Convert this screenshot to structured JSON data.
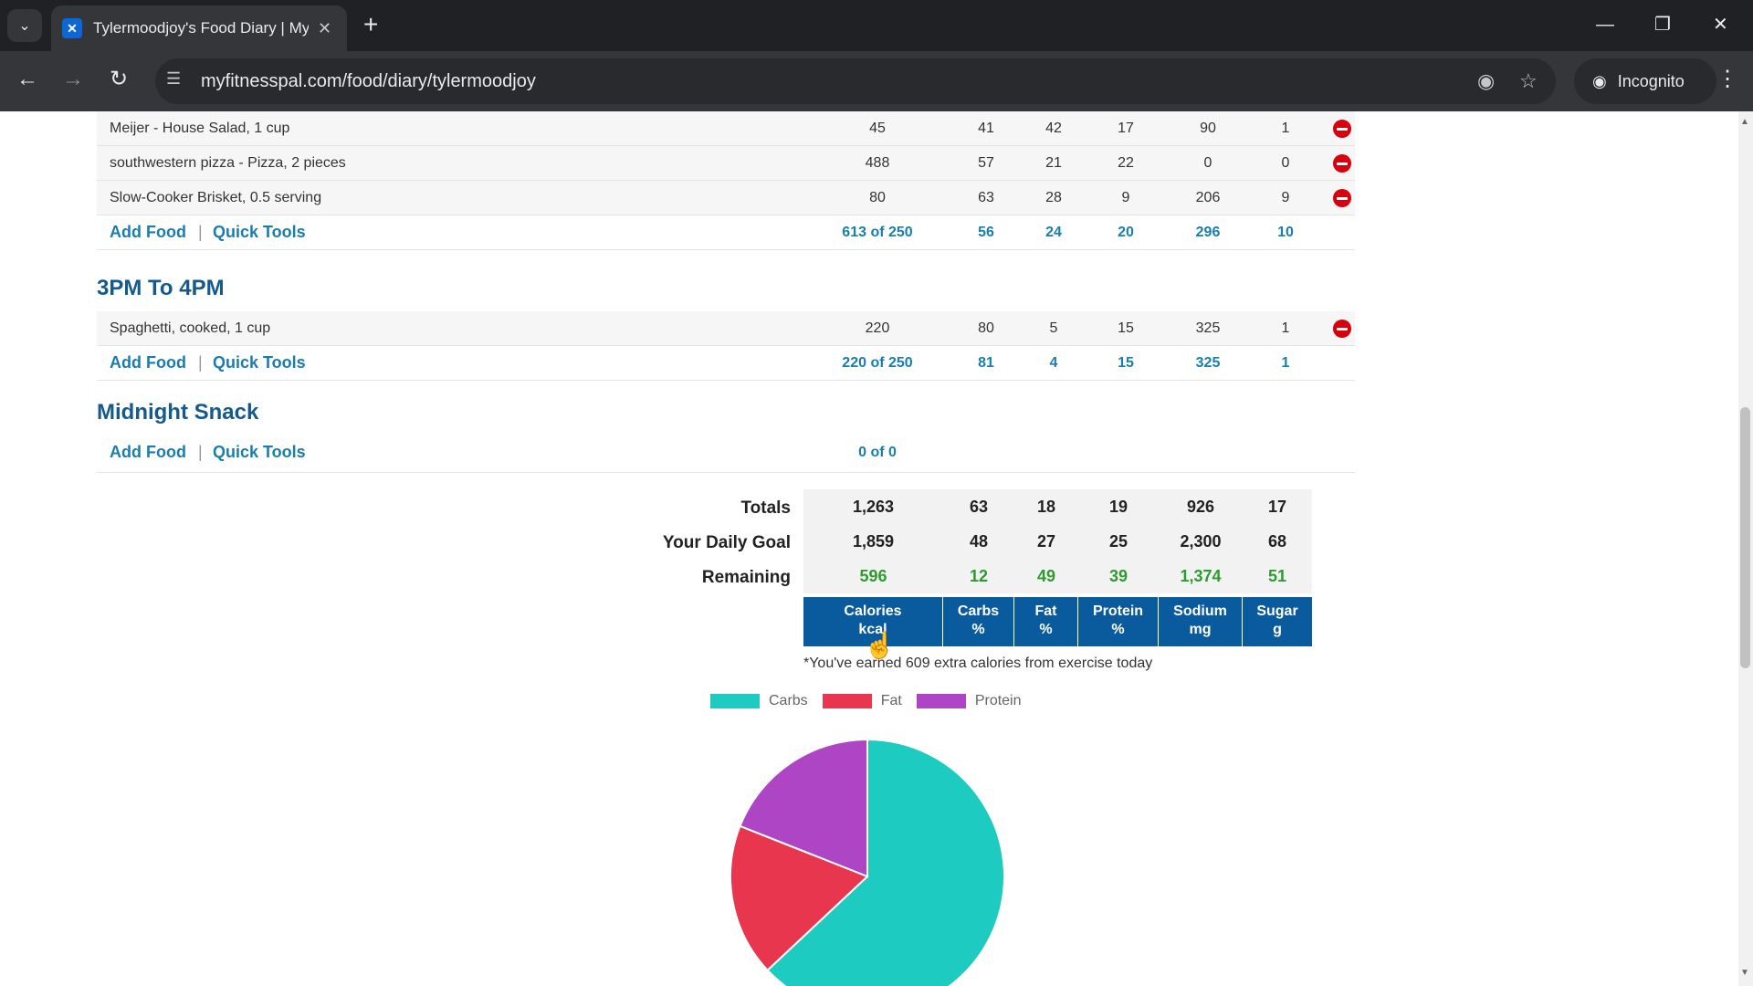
{
  "browser": {
    "tab_title": "Tylermoodjoy's Food Diary | My",
    "favicon_glyph": "✕",
    "url": "myfitnesspal.com/food/diary/tylermoodjoy",
    "incognito_label": "Incognito"
  },
  "meals": {
    "first": {
      "items": [
        {
          "name": "Meijer - House Salad, 1 cup",
          "calories": "45",
          "carbs": "41",
          "fat": "42",
          "protein": "17",
          "sodium": "90",
          "sugar": "1"
        },
        {
          "name": "southwestern pizza - Pizza, 2 pieces",
          "calories": "488",
          "carbs": "57",
          "fat": "21",
          "protein": "22",
          "sodium": "0",
          "sugar": "0"
        },
        {
          "name": "Slow-Cooker Brisket, 0.5 serving",
          "calories": "80",
          "carbs": "63",
          "fat": "28",
          "protein": "9",
          "sodium": "206",
          "sugar": "9"
        }
      ],
      "totals": {
        "calories": "613 of 250",
        "carbs": "56",
        "fat": "24",
        "protein": "20",
        "sodium": "296",
        "sugar": "10"
      }
    },
    "afternoon": {
      "title": "3PM To 4PM",
      "items": [
        {
          "name": "Spaghetti, cooked, 1 cup",
          "calories": "220",
          "carbs": "80",
          "fat": "5",
          "protein": "15",
          "sodium": "325",
          "sugar": "1"
        }
      ],
      "totals": {
        "calories": "220 of 250",
        "carbs": "81",
        "fat": "4",
        "protein": "15",
        "sodium": "325",
        "sugar": "1"
      }
    },
    "midnight": {
      "title": "Midnight Snack",
      "totals": {
        "calories": "0 of 0"
      }
    }
  },
  "actions": {
    "add_food": "Add Food",
    "quick_tools": "Quick Tools",
    "separator": "|"
  },
  "summary": {
    "totals": {
      "label": "Totals",
      "calories": "1,263",
      "carbs": "63",
      "fat": "18",
      "protein": "19",
      "sodium": "926",
      "sugar": "17"
    },
    "goal": {
      "label": "Your Daily Goal",
      "calories": "1,859",
      "carbs": "48",
      "fat": "27",
      "protein": "25",
      "sodium": "2,300",
      "sugar": "68"
    },
    "remaining": {
      "label": "Remaining",
      "calories": "596",
      "carbs": "12",
      "fat": "49",
      "protein": "39",
      "sodium": "1,374",
      "sugar": "51"
    },
    "columns": [
      {
        "name": "Calories",
        "unit": "kcal"
      },
      {
        "name": "Carbs",
        "unit": "%"
      },
      {
        "name": "Fat",
        "unit": "%"
      },
      {
        "name": "Protein",
        "unit": "%"
      },
      {
        "name": "Sodium",
        "unit": "mg"
      },
      {
        "name": "Sugar",
        "unit": "g"
      }
    ],
    "exercise_note": "*You've earned 609 extra calories from exercise today"
  },
  "chart_data": {
    "type": "pie",
    "labels": [
      "Carbs",
      "Fat",
      "Protein"
    ],
    "values": [
      63,
      18,
      19
    ],
    "colors": [
      "#1ecbc1",
      "#e8364f",
      "#ad45c4"
    ],
    "legend": "top"
  }
}
